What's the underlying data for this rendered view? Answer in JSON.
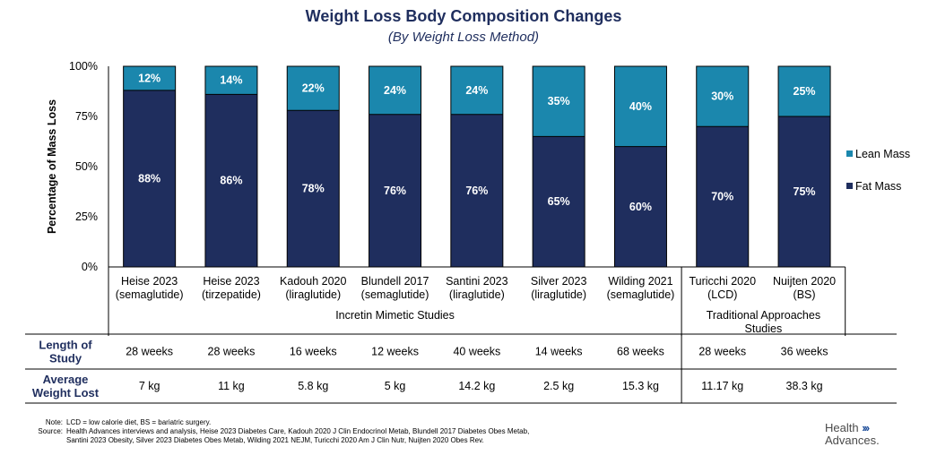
{
  "chart_data": {
    "type": "bar",
    "stacked": true,
    "title": "Weight Loss Body Composition Changes",
    "subtitle": "(By Weight Loss Method)",
    "ylabel": "Percentage of Mass Loss",
    "ylim": [
      0,
      100
    ],
    "yticks": [
      "0%",
      "25%",
      "50%",
      "75%",
      "100%"
    ],
    "categories": [
      [
        "Heise 2023",
        "(semaglutide)"
      ],
      [
        "Heise 2023",
        "(tirzepatide)"
      ],
      [
        "Kadouh 2020",
        "(liraglutide)"
      ],
      [
        "Blundell 2017",
        "(semaglutide)"
      ],
      [
        "Santini 2023",
        "(liraglutide)"
      ],
      [
        "Silver 2023",
        "(liraglutide)"
      ],
      [
        "Wilding 2021",
        "(semaglutide)"
      ],
      [
        "Turicchi 2020",
        "(LCD)"
      ],
      [
        "Nuijten 2020",
        "(BS)"
      ]
    ],
    "series": [
      {
        "name": "Fat Mass",
        "color": "#1f2e5e",
        "values": [
          88,
          86,
          78,
          76,
          76,
          65,
          60,
          70,
          75
        ],
        "labels": [
          "88%",
          "86%",
          "78%",
          "76%",
          "76%",
          "65%",
          "60%",
          "70%",
          "75%"
        ]
      },
      {
        "name": "Lean Mass",
        "color": "#1b87ad",
        "values": [
          12,
          14,
          22,
          24,
          24,
          35,
          40,
          30,
          25
        ],
        "labels": [
          "12%",
          "14%",
          "22%",
          "24%",
          "24%",
          "35%",
          "40%",
          "30%",
          "25%"
        ]
      }
    ],
    "legend": [
      "Lean Mass",
      "Fat Mass"
    ],
    "groups": [
      {
        "label": [
          "Incretin Mimetic Studies"
        ],
        "count": 7
      },
      {
        "label": [
          "Traditional Approaches",
          "Studies"
        ],
        "count": 2
      }
    ],
    "table": {
      "rows": [
        {
          "header": [
            "Length of",
            "Study"
          ],
          "values": [
            "28 weeks",
            "28 weeks",
            "16 weeks",
            "12 weeks",
            "40 weeks",
            "14 weeks",
            "68 weeks",
            "28 weeks",
            "36 weeks"
          ]
        },
        {
          "header": [
            "Average",
            "Weight Lost"
          ],
          "values": [
            "7 kg",
            "11 kg",
            "5.8 kg",
            "5 kg",
            "14.2 kg",
            "2.5 kg",
            "15.3 kg",
            "11.17 kg",
            "38.3 kg"
          ]
        }
      ]
    }
  },
  "footnote": {
    "note_key": "Note:",
    "note": "LCD = low calorie diet, BS = bariatric surgery.",
    "source_key": "Source:",
    "source_lines": [
      "Health Advances interviews and analysis, Heise 2023 Diabetes Care, Kadouh 2020 J Clin Endocrinol Metab, Blundell 2017 Diabetes Obes Metab,",
      "Santini 2023 Obesity, Silver 2023 Diabetes Obes Metab, Wilding 2021 NEJM, Turicchi 2020 Am J Clin Nutr, Nuijten 2020 Obes Rev."
    ]
  },
  "logo": {
    "line1": "Health",
    "arrows": "›››",
    "line2": "Advances."
  }
}
